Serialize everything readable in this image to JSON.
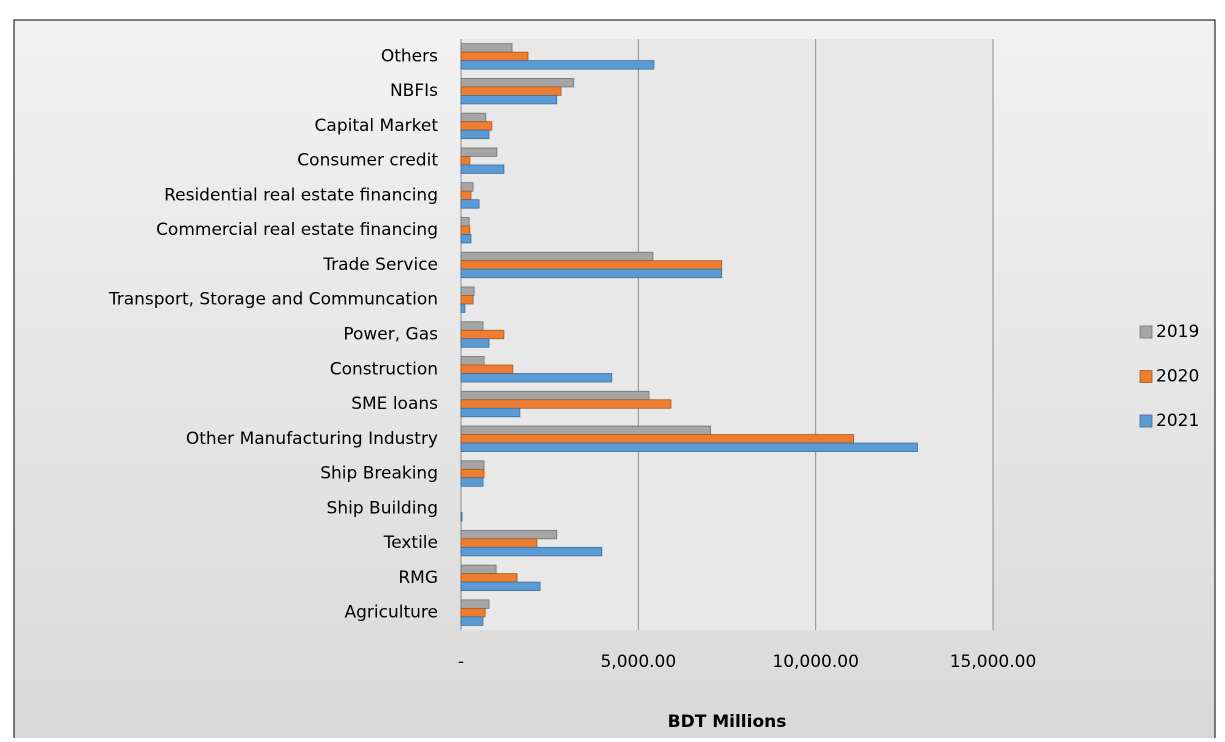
{
  "chart_data": {
    "type": "bar",
    "orientation": "horizontal",
    "x_label": "BDT Millions",
    "categories": [
      "Agriculture",
      "RMG",
      "Textile",
      "Ship Building",
      "Ship Breaking",
      "Other Manufacturing Industry",
      "SME loans",
      "Construction",
      "Power, Gas",
      "Transport, Storage and Communcation",
      "Trade Service",
      "Commercial real estate financing",
      "Residential real estate financing",
      "Consumer credit",
      "Capital Market",
      "NBFIs",
      "Others"
    ],
    "series": [
      {
        "name": "2019",
        "color": "#a5a5a5",
        "values": [
          790,
          990,
          2700,
          0,
          650,
          7040,
          5300,
          650,
          620,
          370,
          5410,
          230,
          340,
          1010,
          700,
          3180,
          1440
        ]
      },
      {
        "name": "2020",
        "color": "#ed7d31",
        "values": [
          680,
          1580,
          2140,
          0,
          650,
          11070,
          5920,
          1460,
          1210,
          340,
          7350,
          250,
          280,
          250,
          870,
          2820,
          1890
        ]
      },
      {
        "name": "2021",
        "color": "#5b9bd5",
        "values": [
          620,
          2230,
          3970,
          30,
          620,
          12870,
          1660,
          4250,
          790,
          110,
          7350,
          280,
          510,
          1210,
          790,
          2700,
          5440
        ]
      }
    ],
    "xlim": [
      0,
      15000
    ],
    "xticks": [
      {
        "value": 0,
        "label": "-"
      },
      {
        "value": 5000,
        "label": "5,000.00"
      },
      {
        "value": 10000,
        "label": "10,000.00"
      },
      {
        "value": 15000,
        "label": "15,000.00"
      }
    ],
    "grid": true,
    "legend": "right"
  }
}
